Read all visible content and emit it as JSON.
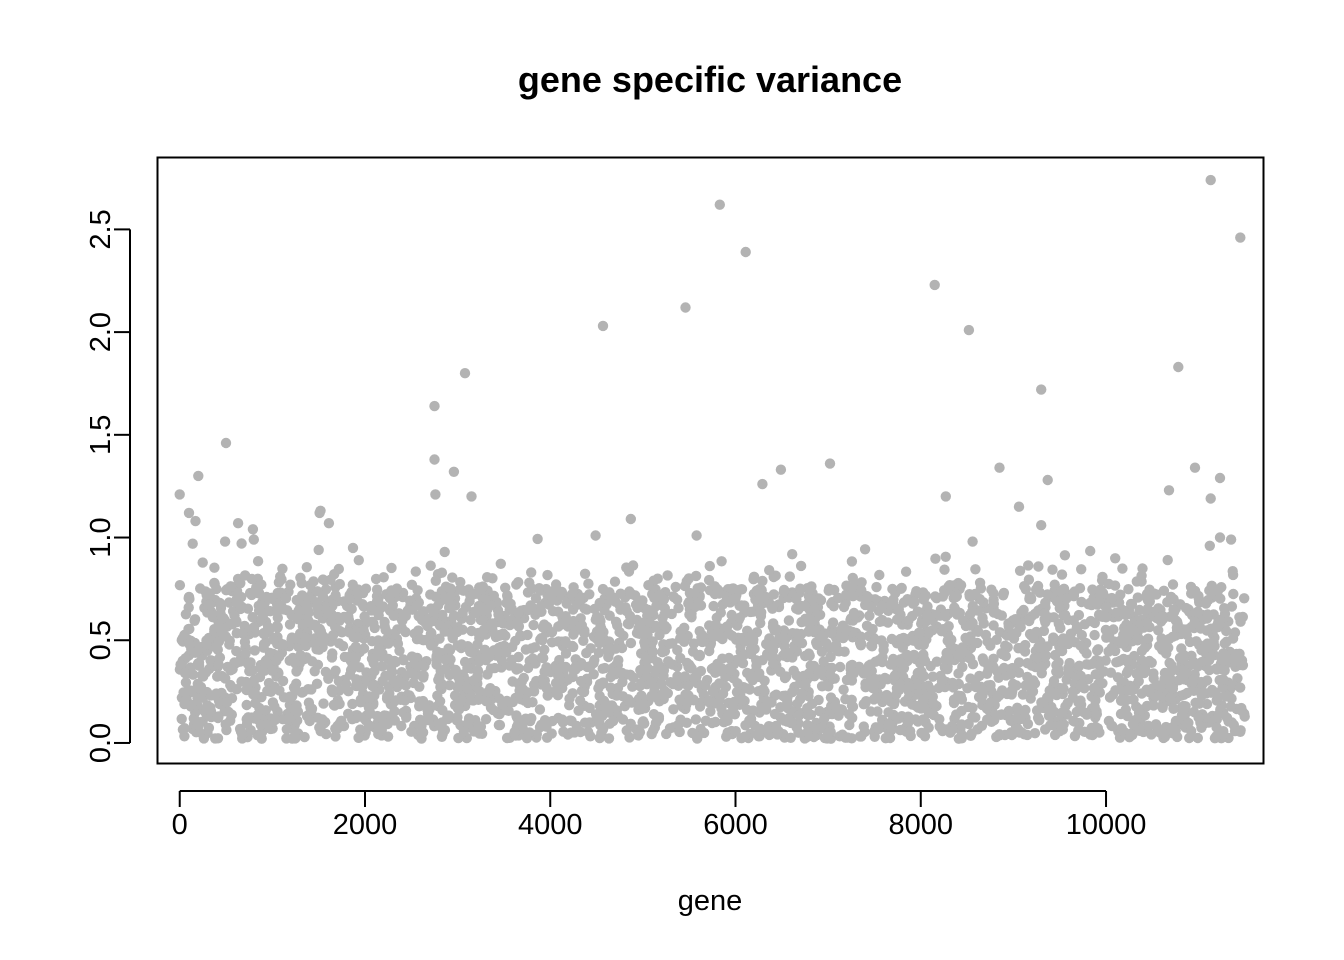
{
  "chart_data": {
    "type": "scatter",
    "title": "gene specific variance",
    "xlabel": "gene",
    "ylabel": "",
    "xlim": [
      -240,
      11700
    ],
    "ylim": [
      -0.1,
      2.85
    ],
    "x_ticks": [
      0,
      2000,
      4000,
      6000,
      8000,
      10000
    ],
    "x_tick_labels": [
      "0",
      "2000",
      "4000",
      "6000",
      "8000",
      "10000"
    ],
    "y_ticks": [
      0.0,
      0.5,
      1.0,
      1.5,
      2.0,
      2.5
    ],
    "y_tick_labels": [
      "0.0",
      "0.5",
      "1.0",
      "1.5",
      "2.0",
      "2.5"
    ],
    "grid": false,
    "legend": "none",
    "point_color": "#b3b3b3",
    "n_points": 11500,
    "bulk": {
      "description_range_y": [
        0.02,
        0.75
      ],
      "x_range": [
        0,
        11500
      ]
    },
    "outliers": [
      {
        "x": 0,
        "y": 1.21
      },
      {
        "x": 100,
        "y": 1.12
      },
      {
        "x": 140,
        "y": 0.97
      },
      {
        "x": 170,
        "y": 1.08
      },
      {
        "x": 200,
        "y": 1.3
      },
      {
        "x": 490,
        "y": 0.98
      },
      {
        "x": 500,
        "y": 1.46
      },
      {
        "x": 630,
        "y": 1.07
      },
      {
        "x": 790,
        "y": 1.04
      },
      {
        "x": 800,
        "y": 0.99
      },
      {
        "x": 1510,
        "y": 1.12
      },
      {
        "x": 1520,
        "y": 1.13
      },
      {
        "x": 1500,
        "y": 0.94
      },
      {
        "x": 1610,
        "y": 1.07
      },
      {
        "x": 2750,
        "y": 1.64
      },
      {
        "x": 2750,
        "y": 1.38
      },
      {
        "x": 2760,
        "y": 1.21
      },
      {
        "x": 2860,
        "y": 0.93
      },
      {
        "x": 2960,
        "y": 1.32
      },
      {
        "x": 3080,
        "y": 1.8
      },
      {
        "x": 3150,
        "y": 1.2
      },
      {
        "x": 4490,
        "y": 1.01
      },
      {
        "x": 4570,
        "y": 2.03
      },
      {
        "x": 4870,
        "y": 1.09
      },
      {
        "x": 5460,
        "y": 2.12
      },
      {
        "x": 5580,
        "y": 1.01
      },
      {
        "x": 5830,
        "y": 2.62
      },
      {
        "x": 6110,
        "y": 2.39
      },
      {
        "x": 6290,
        "y": 1.26
      },
      {
        "x": 6490,
        "y": 1.33
      },
      {
        "x": 7020,
        "y": 1.36
      },
      {
        "x": 8150,
        "y": 2.23
      },
      {
        "x": 8270,
        "y": 1.2
      },
      {
        "x": 8520,
        "y": 2.01
      },
      {
        "x": 8560,
        "y": 0.98
      },
      {
        "x": 8850,
        "y": 1.34
      },
      {
        "x": 9060,
        "y": 1.15
      },
      {
        "x": 9300,
        "y": 1.72
      },
      {
        "x": 9300,
        "y": 1.06
      },
      {
        "x": 9370,
        "y": 1.28
      },
      {
        "x": 10680,
        "y": 1.23
      },
      {
        "x": 10780,
        "y": 1.83
      },
      {
        "x": 10960,
        "y": 1.34
      },
      {
        "x": 11130,
        "y": 2.74
      },
      {
        "x": 11130,
        "y": 1.19
      },
      {
        "x": 11230,
        "y": 1.29
      },
      {
        "x": 11230,
        "y": 1.0
      },
      {
        "x": 11350,
        "y": 0.99
      },
      {
        "x": 11450,
        "y": 2.46
      },
      {
        "x": 11120,
        "y": 0.96
      }
    ]
  }
}
